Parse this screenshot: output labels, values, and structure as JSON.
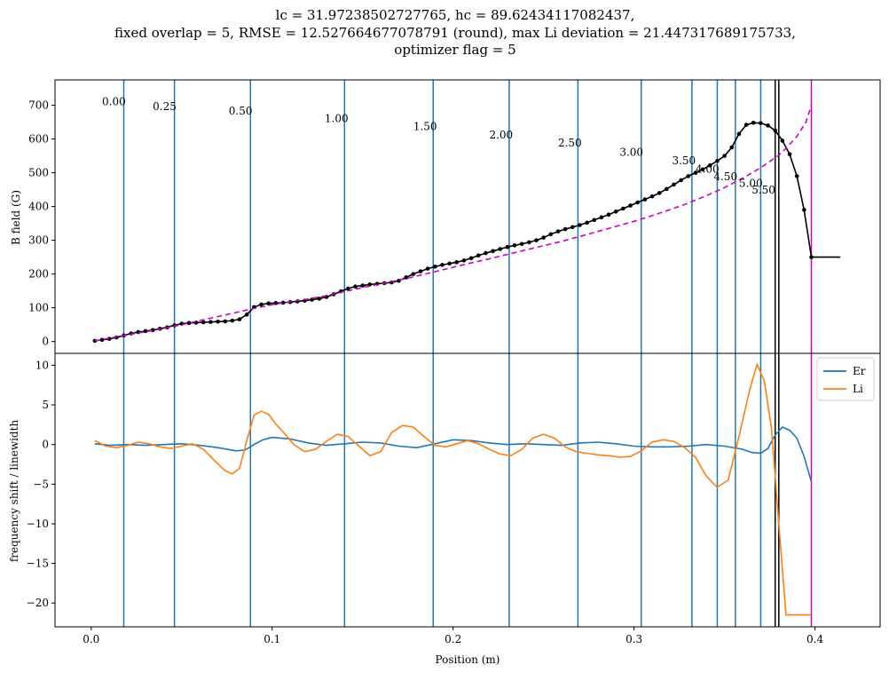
{
  "chart_data": [
    {
      "type": "line",
      "panel": "top",
      "title_lines": [
        "lc = 31.97238502727765, hc = 89.62434117082437,",
        "fixed overlap = 5, RMSE = 12.527664677078791 (round), max Li deviation = 21.447317689175733,",
        "optimizer flag = 5"
      ],
      "xlabel": "",
      "ylabel": "B field (G)",
      "xlim": [
        -0.02,
        0.436
      ],
      "ylim": [
        -35,
        775
      ],
      "yticks": [
        0,
        100,
        200,
        300,
        400,
        500,
        600,
        700
      ],
      "vlines": [
        0.018,
        0.046,
        0.088,
        0.14,
        0.189,
        0.231,
        0.269,
        0.304,
        0.332,
        0.346,
        0.356,
        0.37
      ],
      "vline_color": "#1f77b4",
      "black_vlines": [
        0.378,
        0.38
      ],
      "magenta_vline": 0.398,
      "annotations": [
        {
          "text": "0.00",
          "x": 0.006,
          "y": 700
        },
        {
          "text": "0.25",
          "x": 0.034,
          "y": 686
        },
        {
          "text": "0.50",
          "x": 0.076,
          "y": 673
        },
        {
          "text": "1.00",
          "x": 0.129,
          "y": 650
        },
        {
          "text": "1.50",
          "x": 0.178,
          "y": 627
        },
        {
          "text": "2.00",
          "x": 0.22,
          "y": 602
        },
        {
          "text": "2.50",
          "x": 0.258,
          "y": 578
        },
        {
          "text": "3.00",
          "x": 0.292,
          "y": 550
        },
        {
          "text": "3.50",
          "x": 0.321,
          "y": 525
        },
        {
          "text": "4.00",
          "x": 0.334,
          "y": 500
        },
        {
          "text": "4.50",
          "x": 0.344,
          "y": 478
        },
        {
          "text": "5.00",
          "x": 0.358,
          "y": 458
        },
        {
          "text": "5.50",
          "x": 0.365,
          "y": 438
        }
      ],
      "series": [
        {
          "style": "black-line-markers",
          "color": "#000000",
          "x": [
            0.002,
            0.006,
            0.01,
            0.014,
            0.018,
            0.022,
            0.026,
            0.03,
            0.034,
            0.038,
            0.042,
            0.046,
            0.05,
            0.054,
            0.058,
            0.062,
            0.066,
            0.07,
            0.074,
            0.078,
            0.082,
            0.086,
            0.09,
            0.094,
            0.098,
            0.102,
            0.106,
            0.11,
            0.114,
            0.118,
            0.122,
            0.126,
            0.13,
            0.134,
            0.138,
            0.142,
            0.146,
            0.15,
            0.154,
            0.158,
            0.162,
            0.166,
            0.17,
            0.174,
            0.178,
            0.182,
            0.186,
            0.19,
            0.194,
            0.198,
            0.202,
            0.206,
            0.21,
            0.214,
            0.218,
            0.222,
            0.226,
            0.23,
            0.234,
            0.238,
            0.242,
            0.246,
            0.25,
            0.254,
            0.258,
            0.262,
            0.266,
            0.27,
            0.274,
            0.278,
            0.282,
            0.286,
            0.29,
            0.294,
            0.298,
            0.302,
            0.306,
            0.31,
            0.314,
            0.318,
            0.322,
            0.326,
            0.33,
            0.334,
            0.338,
            0.342,
            0.346,
            0.35,
            0.354,
            0.358,
            0.362,
            0.366,
            0.37,
            0.374,
            0.378,
            0.382,
            0.386,
            0.39,
            0.394,
            0.398,
            0.402,
            0.406,
            0.41,
            0.414
          ],
          "y": [
            2,
            5,
            8,
            12,
            18,
            24,
            28,
            31,
            34,
            38,
            42,
            48,
            53,
            55,
            56,
            57,
            58,
            59,
            60,
            62,
            66,
            80,
            102,
            110,
            113,
            114,
            115,
            117,
            119,
            121,
            124,
            127,
            132,
            140,
            149,
            157,
            163,
            166,
            169,
            171,
            173,
            175,
            180,
            190,
            200,
            208,
            216,
            222,
            227,
            231,
            235,
            240,
            247,
            255,
            262,
            268,
            274,
            280,
            285,
            289,
            294,
            300,
            308,
            318,
            326,
            333,
            339,
            345,
            352,
            360,
            368,
            376,
            385,
            394,
            403,
            412,
            421,
            430,
            440,
            452,
            465,
            478,
            490,
            500,
            510,
            522,
            535,
            550,
            575,
            615,
            642,
            648,
            647,
            640,
            625,
            595,
            555,
            490,
            390,
            250,
            250,
            250,
            250,
            250
          ]
        },
        {
          "style": "magenta-dashed",
          "color": "#cc00cc",
          "x": [
            0.002,
            0.01,
            0.02,
            0.03,
            0.04,
            0.05,
            0.06,
            0.07,
            0.08,
            0.09,
            0.1,
            0.11,
            0.12,
            0.13,
            0.14,
            0.15,
            0.16,
            0.17,
            0.18,
            0.19,
            0.2,
            0.21,
            0.22,
            0.23,
            0.24,
            0.25,
            0.26,
            0.27,
            0.28,
            0.29,
            0.3,
            0.31,
            0.32,
            0.33,
            0.34,
            0.35,
            0.36,
            0.37,
            0.38,
            0.385,
            0.39,
            0.395,
            0.398
          ],
          "y": [
            2,
            10,
            20,
            29,
            39,
            50,
            62,
            74,
            86,
            98,
            109,
            118,
            126,
            136,
            148,
            160,
            171,
            182,
            194,
            207,
            220,
            233,
            245,
            258,
            271,
            284,
            297,
            311,
            326,
            341,
            356,
            373,
            391,
            410,
            432,
            456,
            484,
            515,
            552,
            578,
            608,
            650,
            700
          ]
        }
      ]
    },
    {
      "type": "line",
      "panel": "bottom",
      "xlabel": "Position (m)",
      "ylabel": "frequency shift / linewidth",
      "xlim": [
        -0.02,
        0.436
      ],
      "ylim": [
        -23,
        11.5
      ],
      "xticks": [
        0.0,
        0.1,
        0.2,
        0.3,
        0.4
      ],
      "xtick_labels": [
        "0.0",
        "0.1",
        "0.2",
        "0.3",
        "0.4"
      ],
      "yticks": [
        10,
        5,
        0,
        -5,
        -10,
        -15,
        -20
      ],
      "legend_position": "top-right",
      "series": [
        {
          "name": "Er",
          "color": "#1f77b4",
          "x": [
            0.002,
            0.01,
            0.02,
            0.03,
            0.04,
            0.05,
            0.06,
            0.07,
            0.08,
            0.085,
            0.09,
            0.095,
            0.1,
            0.11,
            0.12,
            0.13,
            0.14,
            0.15,
            0.16,
            0.17,
            0.18,
            0.19,
            0.2,
            0.21,
            0.22,
            0.23,
            0.24,
            0.25,
            0.26,
            0.27,
            0.28,
            0.29,
            0.3,
            0.31,
            0.32,
            0.33,
            0.34,
            0.35,
            0.36,
            0.365,
            0.37,
            0.374,
            0.378,
            0.382,
            0.386,
            0.39,
            0.394,
            0.398
          ],
          "y": [
            0.1,
            -0.1,
            0.0,
            -0.1,
            0.0,
            0.1,
            -0.1,
            -0.4,
            -0.8,
            -0.7,
            0.0,
            0.6,
            0.9,
            0.7,
            0.2,
            -0.1,
            0.1,
            0.3,
            0.2,
            -0.2,
            -0.4,
            0.1,
            0.6,
            0.5,
            0.2,
            0.0,
            0.1,
            0.0,
            -0.1,
            0.2,
            0.3,
            0.1,
            -0.2,
            -0.3,
            -0.3,
            -0.2,
            0.0,
            -0.2,
            -0.6,
            -1.0,
            -1.1,
            -0.5,
            1.2,
            2.2,
            1.8,
            0.8,
            -1.5,
            -4.7
          ]
        },
        {
          "name": "Li",
          "color": "#ff7f0e",
          "x": [
            0.002,
            0.008,
            0.014,
            0.02,
            0.026,
            0.032,
            0.038,
            0.044,
            0.05,
            0.056,
            0.062,
            0.068,
            0.074,
            0.078,
            0.082,
            0.086,
            0.09,
            0.094,
            0.098,
            0.102,
            0.106,
            0.112,
            0.118,
            0.124,
            0.13,
            0.136,
            0.142,
            0.148,
            0.154,
            0.16,
            0.166,
            0.172,
            0.178,
            0.184,
            0.19,
            0.196,
            0.202,
            0.208,
            0.214,
            0.22,
            0.226,
            0.232,
            0.238,
            0.244,
            0.25,
            0.256,
            0.262,
            0.268,
            0.274,
            0.28,
            0.286,
            0.292,
            0.298,
            0.304,
            0.31,
            0.316,
            0.322,
            0.328,
            0.334,
            0.34,
            0.346,
            0.352,
            0.358,
            0.364,
            0.368,
            0.372,
            0.376,
            0.38,
            0.384,
            0.388,
            0.392,
            0.395,
            0.398
          ],
          "y": [
            0.5,
            -0.2,
            -0.4,
            -0.1,
            0.3,
            0.1,
            -0.3,
            -0.5,
            -0.2,
            0.1,
            -0.6,
            -2.0,
            -3.3,
            -3.7,
            -3.0,
            0.5,
            3.7,
            4.2,
            3.8,
            2.6,
            1.6,
            0.0,
            -0.9,
            -0.6,
            0.4,
            1.3,
            1.0,
            -0.2,
            -1.4,
            -0.9,
            1.5,
            2.4,
            2.2,
            1.0,
            -0.1,
            -0.3,
            0.1,
            0.5,
            0.1,
            -0.6,
            -1.2,
            -1.4,
            -0.6,
            0.8,
            1.3,
            0.8,
            -0.3,
            -0.9,
            -1.1,
            -1.3,
            -1.4,
            -1.6,
            -1.5,
            -0.8,
            0.3,
            0.6,
            0.4,
            -0.4,
            -1.6,
            -4.0,
            -5.4,
            -4.5,
            1.0,
            7.0,
            10.1,
            8.0,
            2.0,
            -10.0,
            -21.5,
            -21.5,
            -21.5,
            -21.5,
            -21.5
          ]
        }
      ]
    }
  ]
}
